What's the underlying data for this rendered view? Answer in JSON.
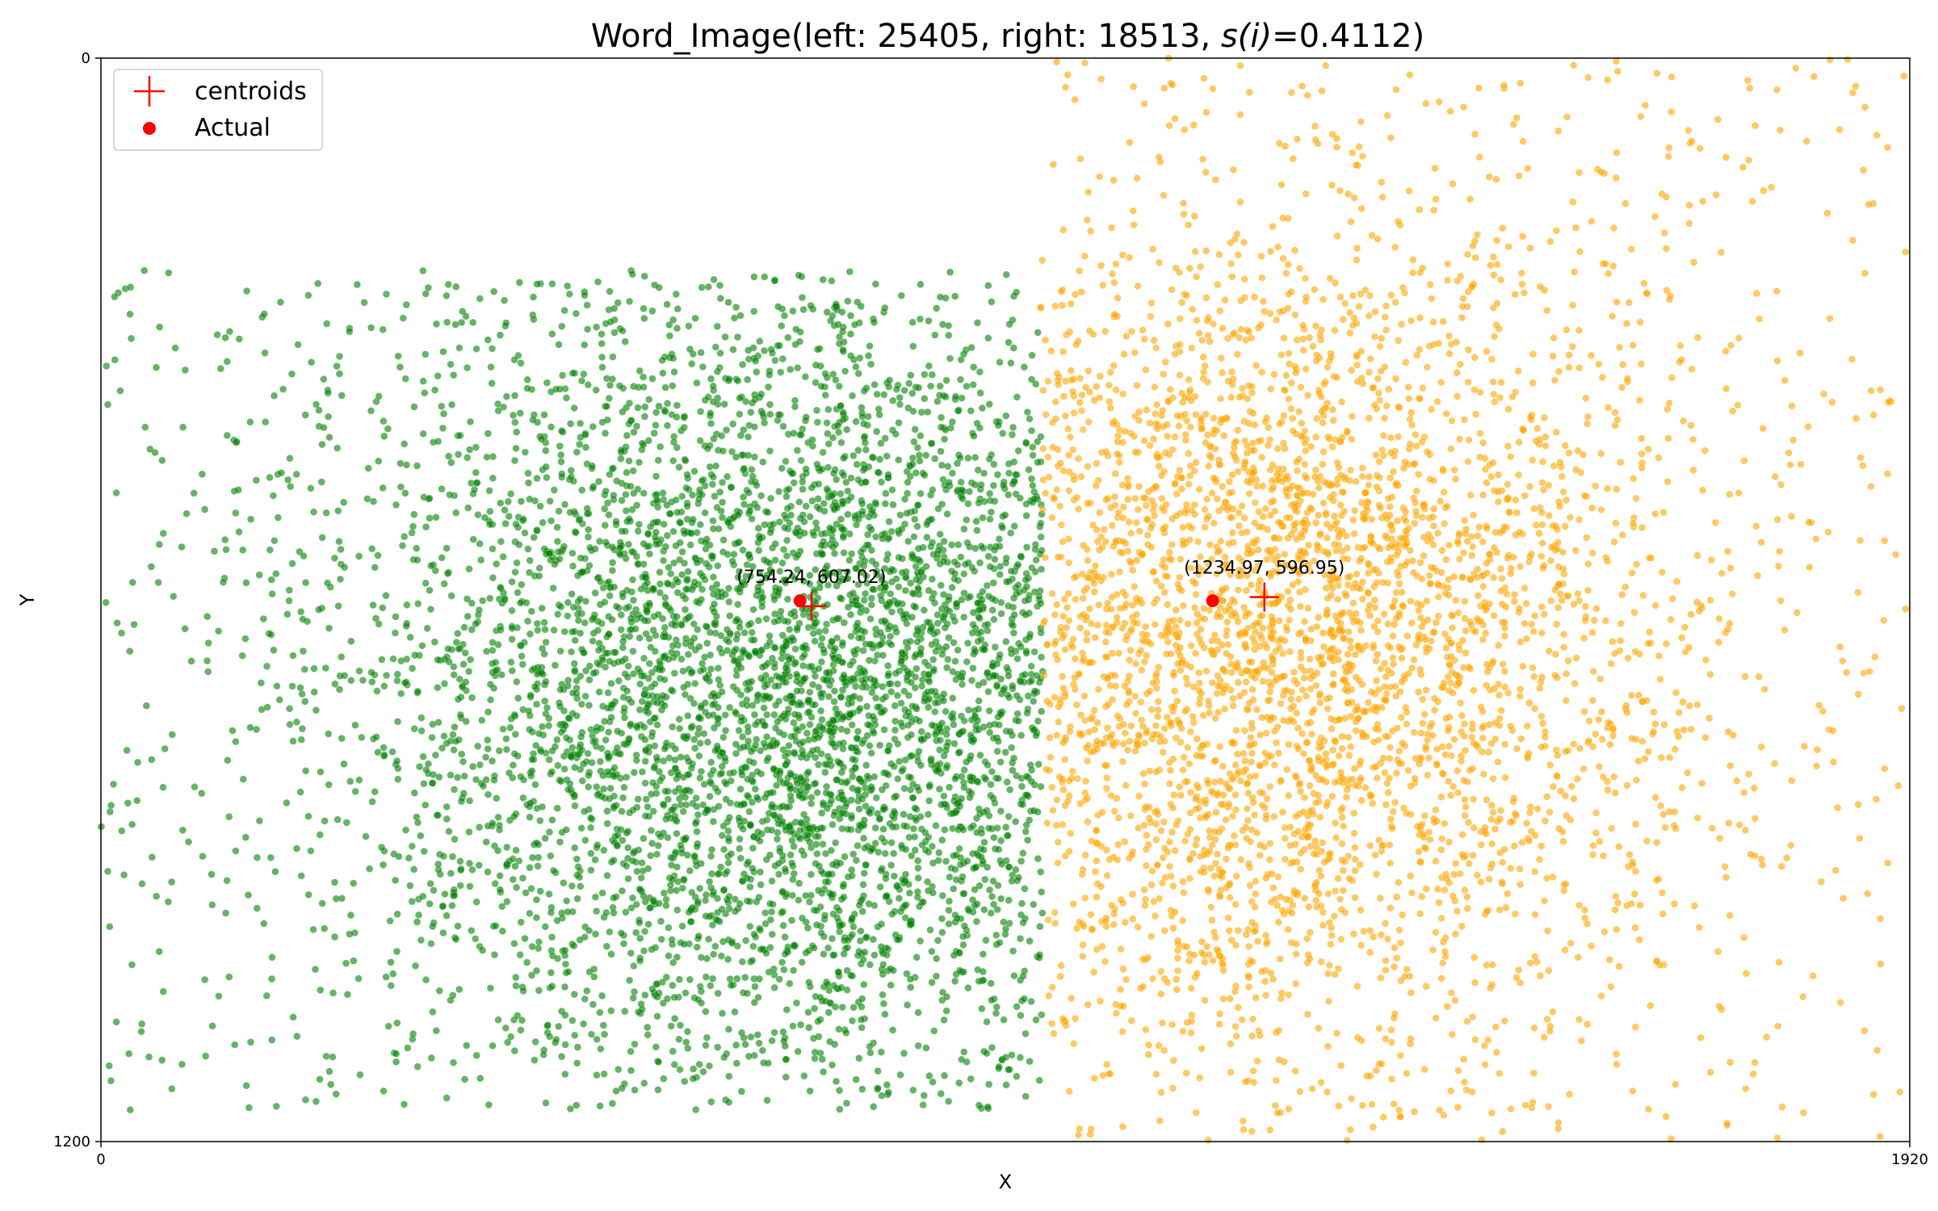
{
  "chart_data": {
    "type": "scatter",
    "title": "Word_Image(left: 25405, right: 18513, s(i)=0.4112)",
    "title_parts": {
      "prefix": "Word_Image(left: 25405, right: 18513, ",
      "math": "s(i)",
      "suffix": "=0.4112)"
    },
    "xlabel": "X",
    "ylabel": "Y",
    "xlim": [
      0,
      1920
    ],
    "ylim": [
      1200,
      0
    ],
    "y_inverted": true,
    "x_ticks": [
      0,
      1920
    ],
    "y_ticks": [
      0,
      1200
    ],
    "x_tick_labels": [
      "0",
      "1920"
    ],
    "y_tick_labels": [
      "0",
      "1200"
    ],
    "grid": false,
    "legend": {
      "placement": "top-left",
      "entries": [
        {
          "label": "centroids",
          "marker": "plus",
          "color": "#ff0000"
        },
        {
          "label": "Actual",
          "marker": "dot",
          "color": "#ff0000"
        }
      ]
    },
    "clusters": [
      {
        "side": "left",
        "count": 25405,
        "color": "#008000",
        "x_range": [
          0,
          1000
        ],
        "y_range": [
          235,
          1165
        ],
        "dense_core": {
          "x": [
            480,
            1000
          ],
          "y": [
            330,
            1060
          ]
        },
        "actual": [
          742,
          601
        ],
        "centroid": [
          754.24,
          607.02
        ]
      },
      {
        "side": "right",
        "count": 18513,
        "color": "#ffa500",
        "x_range": [
          1000,
          1920
        ],
        "y_range": [
          0,
          1200
        ],
        "dense_core": {
          "x": [
            1000,
            1500
          ],
          "y": [
            260,
            1020
          ]
        },
        "actual": [
          1180,
          601
        ],
        "centroid": [
          1234.97,
          596.95
        ]
      }
    ],
    "annotations": [
      {
        "text": "(754.24, 607.02)",
        "x": 754.24,
        "y": 607.02
      },
      {
        "text": "(1234.97, 596.95)",
        "x": 1234.97,
        "y": 596.95
      }
    ]
  }
}
